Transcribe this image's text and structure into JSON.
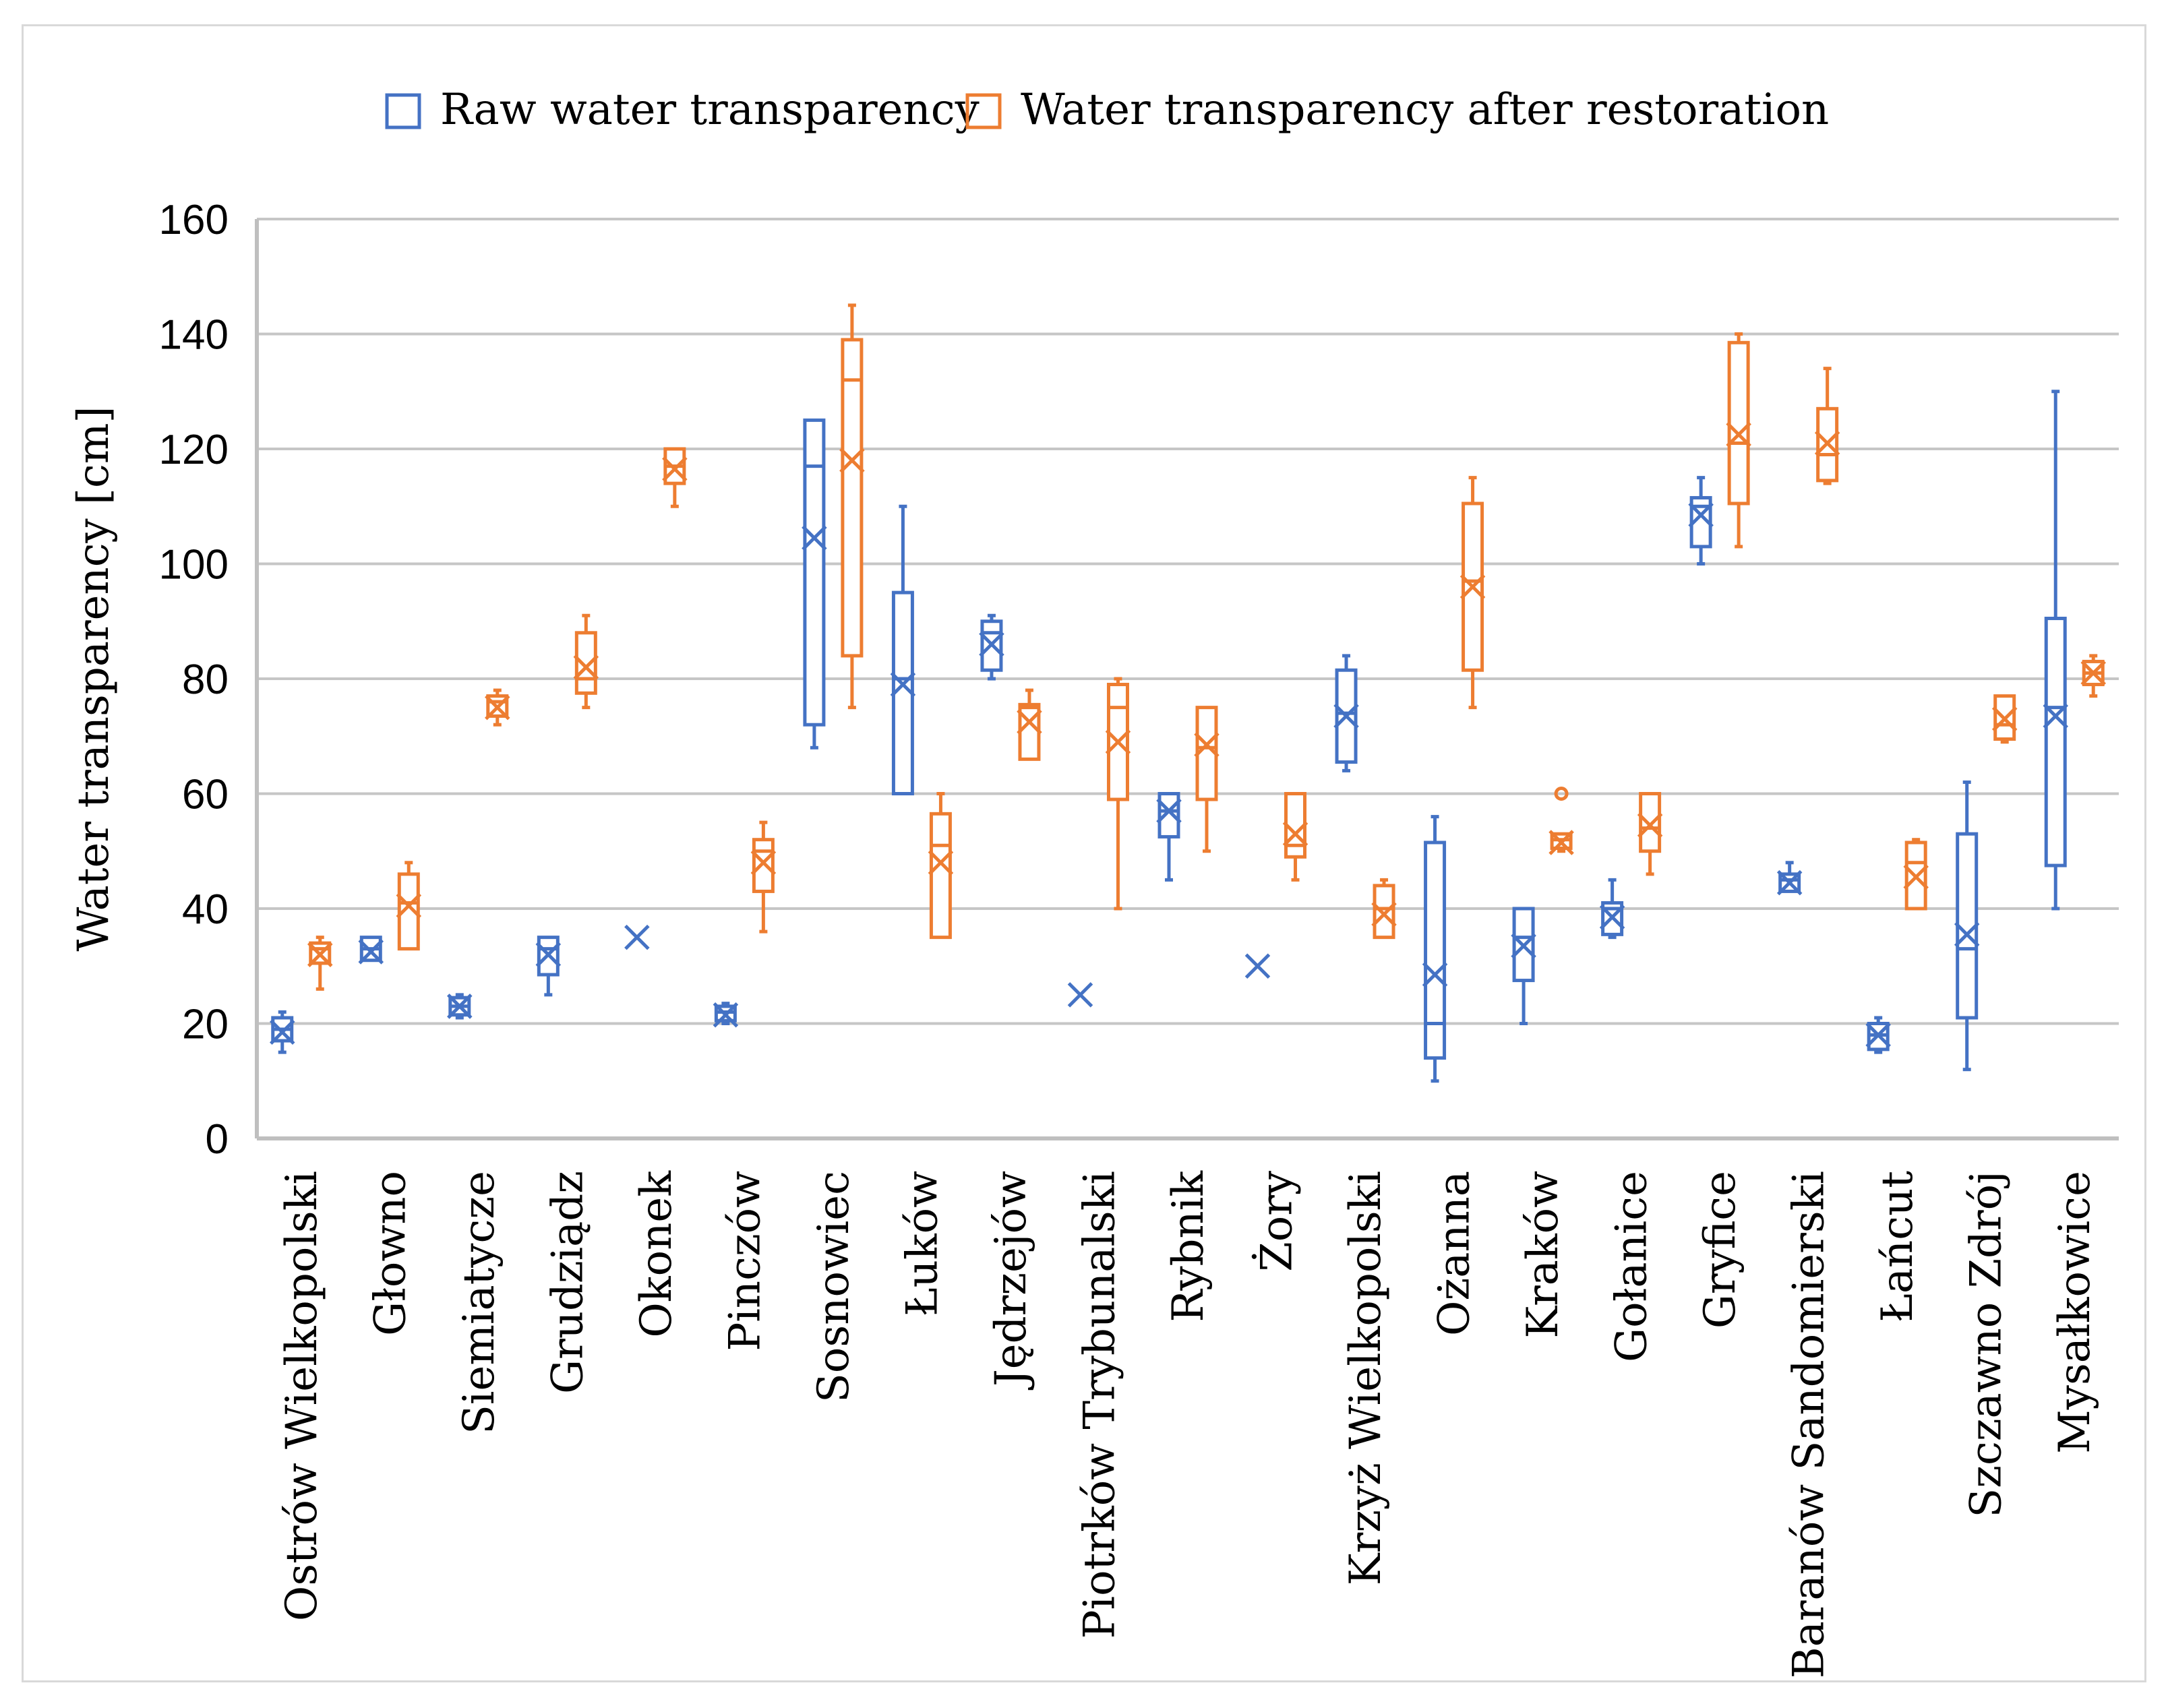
{
  "chart_data": {
    "type": "box",
    "title": "",
    "ylabel": "Water transparency [cm]",
    "xlabel": "",
    "ylim": [
      0,
      160
    ],
    "yticks": [
      "0",
      "20",
      "40",
      "60",
      "80",
      "100",
      "120",
      "140",
      "160"
    ],
    "grid": true,
    "legend_position": "top",
    "categories": [
      "Ostrów Wielkopolski",
      "Głowno",
      "Siemiatycze",
      "Grudziądz",
      "Okonek",
      "Pinczów",
      "Sosnowiec",
      "Łuków",
      "Jędrzejów",
      "Piotrków Trybunalski",
      "Rybnik",
      "Żory",
      "Krzyż Wielkopolski",
      "Ożanna",
      "Kraków",
      "Gołanice",
      "Gryfice",
      "Baranów Sandomierski",
      "Łańcut",
      "Szczawno Zdrój",
      "Mysałkowice"
    ],
    "series": [
      {
        "name": "Raw water transparency",
        "color": "#4472c4",
        "boxes": [
          {
            "min": 15,
            "q1": 17,
            "median": 19,
            "q3": 21,
            "max": 22,
            "mean": 18.5
          },
          {
            "min": 31,
            "q1": 31,
            "median": 33,
            "q3": 35,
            "max": 35,
            "mean": 32.5
          },
          {
            "min": 21,
            "q1": 21.5,
            "median": 23,
            "q3": 24.5,
            "max": 25,
            "mean": 23
          },
          {
            "min": 25,
            "q1": 28.5,
            "median": 33,
            "q3": 35,
            "max": 35,
            "mean": 32
          },
          {
            "min": 35,
            "q1": 35,
            "median": 35,
            "q3": 35,
            "max": 35,
            "mean": 35
          },
          {
            "min": 20,
            "q1": 20.5,
            "median": 22,
            "q3": 23,
            "max": 23.5,
            "mean": 21.5
          },
          {
            "min": 68,
            "q1": 72,
            "median": 117,
            "q3": 125,
            "max": 125,
            "mean": 104.5
          },
          {
            "min": 60,
            "q1": 60,
            "median": 80,
            "q3": 95,
            "max": 110,
            "mean": 79
          },
          {
            "min": 80,
            "q1": 81.5,
            "median": 88,
            "q3": 90,
            "max": 91,
            "mean": 86
          },
          {
            "min": 25,
            "q1": 25,
            "median": 25,
            "q3": 25,
            "max": 25,
            "mean": 25
          },
          {
            "min": 45,
            "q1": 52.5,
            "median": 57,
            "q3": 60,
            "max": 60,
            "mean": 57
          },
          {
            "min": 30,
            "q1": 30,
            "median": 30,
            "q3": 30,
            "max": 30,
            "mean": 30
          },
          {
            "min": 64,
            "q1": 65.5,
            "median": 74,
            "q3": 81.5,
            "max": 84,
            "mean": 73.5
          },
          {
            "min": 10,
            "q1": 14,
            "median": 20,
            "q3": 51.5,
            "max": 56,
            "mean": 28.5
          },
          {
            "min": 20,
            "q1": 27.5,
            "median": 35,
            "q3": 40,
            "max": 40,
            "mean": 33.5
          },
          {
            "min": 35,
            "q1": 35.5,
            "median": 40,
            "q3": 41,
            "max": 45,
            "mean": 38.5
          },
          {
            "min": 100,
            "q1": 103,
            "median": 110,
            "q3": 111.5,
            "max": 115,
            "mean": 108.5
          },
          {
            "min": 43,
            "q1": 43,
            "median": 45,
            "q3": 46,
            "max": 48,
            "mean": 44.5
          },
          {
            "min": 15,
            "q1": 15.5,
            "median": 18,
            "q3": 20,
            "max": 21,
            "mean": 18
          },
          {
            "min": 12,
            "q1": 21,
            "median": 33,
            "q3": 53,
            "max": 62,
            "mean": 35.5
          },
          {
            "min": 40,
            "q1": 47.5,
            "median": 75,
            "q3": 90.5,
            "max": 130,
            "mean": 73.5
          }
        ],
        "outliers": []
      },
      {
        "name": "Water transparency after restoration",
        "color": "#ed7d31",
        "boxes": [
          {
            "min": 26,
            "q1": 30.5,
            "median": 33,
            "q3": 34,
            "max": 35,
            "mean": 32
          },
          {
            "min": 33,
            "q1": 33,
            "median": 41,
            "q3": 46,
            "max": 48,
            "mean": 40.5
          },
          {
            "min": 72,
            "q1": 73.5,
            "median": 76,
            "q3": 77,
            "max": 78,
            "mean": 75
          },
          {
            "min": 75,
            "q1": 77.5,
            "median": 80,
            "q3": 88,
            "max": 91,
            "mean": 82
          },
          {
            "min": 110,
            "q1": 114,
            "median": 117,
            "q3": 120,
            "max": 120,
            "mean": 116.5
          },
          {
            "min": 36,
            "q1": 43,
            "median": 50,
            "q3": 52,
            "max": 55,
            "mean": 48
          },
          {
            "min": 75,
            "q1": 84,
            "median": 132,
            "q3": 139,
            "max": 145,
            "mean": 118
          },
          {
            "min": 35,
            "q1": 35,
            "median": 51,
            "q3": 56.5,
            "max": 60,
            "mean": 48
          },
          {
            "min": 66,
            "q1": 66,
            "median": 75,
            "q3": 75.5,
            "max": 78,
            "mean": 72.5
          },
          {
            "min": 40,
            "q1": 59,
            "median": 75,
            "q3": 79,
            "max": 80,
            "mean": 69
          },
          {
            "min": 50,
            "q1": 59,
            "median": 68,
            "q3": 75,
            "max": 75,
            "mean": 68.5
          },
          {
            "min": 45,
            "q1": 49,
            "median": 51,
            "q3": 60,
            "max": 60,
            "mean": 53
          },
          {
            "min": 35,
            "q1": 35,
            "median": 40,
            "q3": 44,
            "max": 45,
            "mean": 39
          },
          {
            "min": 75,
            "q1": 81.5,
            "median": 97,
            "q3": 110.5,
            "max": 115,
            "mean": 96
          },
          {
            "min": 50,
            "q1": 50.5,
            "median": 52,
            "q3": 53,
            "max": 53,
            "mean": 51.5
          },
          {
            "min": 46,
            "q1": 50,
            "median": 54,
            "q3": 60,
            "max": 60,
            "mean": 54.5
          },
          {
            "min": 103,
            "q1": 110.5,
            "median": 121,
            "q3": 138.5,
            "max": 140,
            "mean": 122.5
          },
          {
            "min": 114,
            "q1": 114.5,
            "median": 119,
            "q3": 127,
            "max": 134,
            "mean": 121
          },
          {
            "min": 40,
            "q1": 40,
            "median": 48,
            "q3": 51.5,
            "max": 52,
            "mean": 45.5
          },
          {
            "min": 69,
            "q1": 69.5,
            "median": 72,
            "q3": 77,
            "max": 77,
            "mean": 73
          },
          {
            "min": 77,
            "q1": 79,
            "median": 81,
            "q3": 83,
            "max": 84,
            "mean": 81
          }
        ],
        "outliers": [
          {
            "category": 14,
            "value": 60
          }
        ]
      }
    ]
  }
}
